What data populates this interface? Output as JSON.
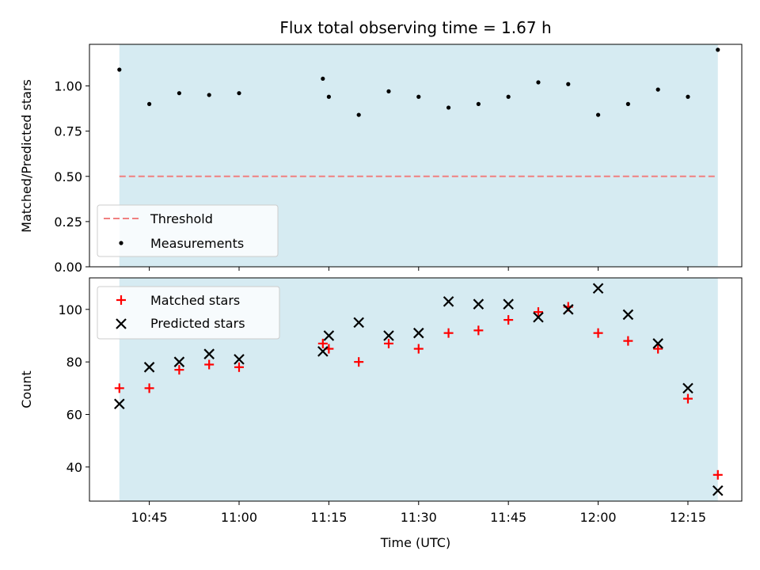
{
  "chart_data": [
    {
      "type": "scatter",
      "title": "Flux total observing time = 1.67 h",
      "xlabel": "",
      "ylabel": "Matched/Predicted stars",
      "ylim": [
        0,
        1.23
      ],
      "yticks": [
        "0.00",
        "0.25",
        "0.50",
        "0.75",
        "1.00"
      ],
      "ytick_values": [
        0,
        0.25,
        0.5,
        0.75,
        1.0
      ],
      "xlim": [
        "10:35",
        "12:24"
      ],
      "shaded_span": [
        "10:40",
        "12:20"
      ],
      "shade_color": "#add8e6",
      "threshold": {
        "name": "Threshold",
        "value": 0.5,
        "color": "#f08080"
      },
      "series": [
        {
          "name": "Measurements",
          "color": "#000000",
          "x": [
            "10:40",
            "10:45",
            "10:50",
            "10:55",
            "11:00",
            "11:14",
            "11:15",
            "11:20",
            "11:25",
            "11:30",
            "11:35",
            "11:40",
            "11:45",
            "11:50",
            "11:55",
            "12:00",
            "12:05",
            "12:10",
            "12:15",
            "12:20"
          ],
          "values": [
            1.09,
            0.9,
            0.96,
            0.95,
            0.96,
            1.04,
            0.94,
            0.84,
            0.97,
            0.94,
            0.88,
            0.9,
            0.94,
            1.02,
            1.01,
            0.84,
            0.9,
            0.98,
            0.94,
            1.2
          ]
        }
      ],
      "legend": "lower-left"
    },
    {
      "type": "scatter",
      "title": "",
      "xlabel": "Time (UTC)",
      "ylabel": "Count",
      "ylim": [
        27,
        112
      ],
      "yticks": [
        "40",
        "60",
        "80",
        "100"
      ],
      "ytick_values": [
        40,
        60,
        80,
        100
      ],
      "xlim": [
        "10:35",
        "12:24"
      ],
      "xticks": [
        "10:45",
        "11:00",
        "11:15",
        "11:30",
        "11:45",
        "12:00",
        "12:15"
      ],
      "shaded_span": [
        "10:40",
        "12:20"
      ],
      "shade_color": "#add8e6",
      "series": [
        {
          "name": "Matched stars",
          "marker": "plus",
          "color": "#ff0000",
          "x": [
            "10:40",
            "10:45",
            "10:50",
            "10:55",
            "11:00",
            "11:14",
            "11:15",
            "11:20",
            "11:25",
            "11:30",
            "11:35",
            "11:40",
            "11:45",
            "11:50",
            "11:55",
            "12:00",
            "12:05",
            "12:10",
            "12:15",
            "12:20"
          ],
          "values": [
            70,
            70,
            77,
            79,
            78,
            87,
            85,
            80,
            87,
            85,
            91,
            92,
            96,
            99,
            101,
            91,
            88,
            85,
            66,
            37
          ]
        },
        {
          "name": "Predicted stars",
          "marker": "x",
          "color": "#000000",
          "x": [
            "10:40",
            "10:45",
            "10:50",
            "10:55",
            "11:00",
            "11:14",
            "11:15",
            "11:20",
            "11:25",
            "11:30",
            "11:35",
            "11:40",
            "11:45",
            "11:50",
            "11:55",
            "12:00",
            "12:05",
            "12:10",
            "12:15",
            "12:20"
          ],
          "values": [
            64,
            78,
            80,
            83,
            81,
            84,
            90,
            95,
            90,
            91,
            103,
            102,
            102,
            97,
            100,
            108,
            98,
            87,
            70,
            31
          ]
        }
      ],
      "legend": "top-left"
    }
  ]
}
